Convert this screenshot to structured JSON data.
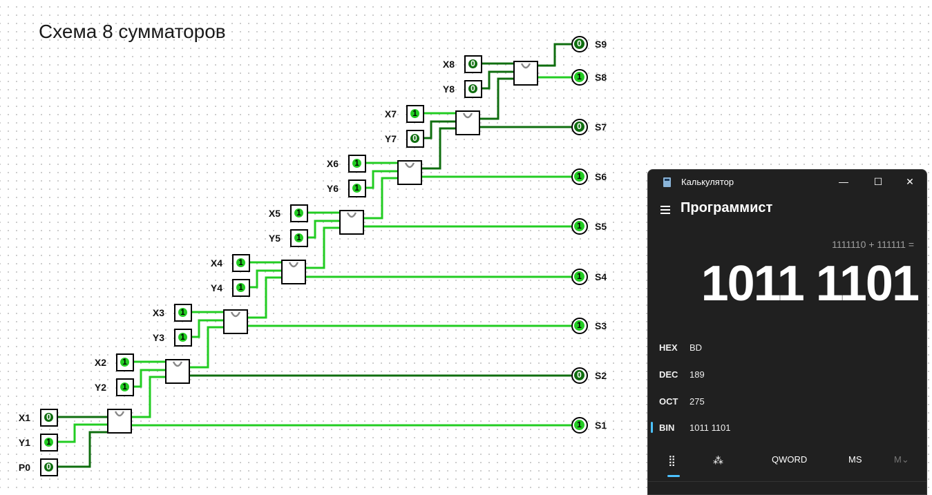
{
  "circuit": {
    "title": "Схема 8 сумматоров",
    "wire_on_color": "#22cc22",
    "wire_off_color": "#0f6e0f",
    "inputs": [
      {
        "label": "X1",
        "value": "0"
      },
      {
        "label": "Y1",
        "value": "1"
      },
      {
        "label": "P0",
        "value": "0"
      },
      {
        "label": "X2",
        "value": "1"
      },
      {
        "label": "Y2",
        "value": "1"
      },
      {
        "label": "X3",
        "value": "1"
      },
      {
        "label": "Y3",
        "value": "1"
      },
      {
        "label": "X4",
        "value": "1"
      },
      {
        "label": "Y4",
        "value": "1"
      },
      {
        "label": "X5",
        "value": "1"
      },
      {
        "label": "Y5",
        "value": "1"
      },
      {
        "label": "X6",
        "value": "1"
      },
      {
        "label": "Y6",
        "value": "1"
      },
      {
        "label": "X7",
        "value": "1"
      },
      {
        "label": "Y7",
        "value": "0"
      },
      {
        "label": "X8",
        "value": "0"
      },
      {
        "label": "Y8",
        "value": "0"
      }
    ],
    "outputs": [
      {
        "label": "S1",
        "value": "1"
      },
      {
        "label": "S2",
        "value": "0"
      },
      {
        "label": "S3",
        "value": "1"
      },
      {
        "label": "S4",
        "value": "1"
      },
      {
        "label": "S5",
        "value": "1"
      },
      {
        "label": "S6",
        "value": "1"
      },
      {
        "label": "S7",
        "value": "0"
      },
      {
        "label": "S8",
        "value": "1"
      },
      {
        "label": "S9",
        "value": "0"
      }
    ]
  },
  "calculator": {
    "window_title": "Калькулятор",
    "minimize": "—",
    "maximize": "☐",
    "close": "✕",
    "mode": "Программист",
    "expression": "1111110 + 111111 =",
    "result": "1011 1101",
    "rows": [
      {
        "label": "HEX",
        "value": "BD"
      },
      {
        "label": "DEC",
        "value": "189"
      },
      {
        "label": "OCT",
        "value": "275"
      },
      {
        "label": "BIN",
        "value": "1011 1101"
      }
    ],
    "active_row": "BIN",
    "toolbar": {
      "keypad_icon": "⣿",
      "bits_icon": "⁂",
      "word_size": "QWORD",
      "ms": "MS",
      "mv": "M⌄"
    },
    "accent_color": "#4cc2ff"
  }
}
